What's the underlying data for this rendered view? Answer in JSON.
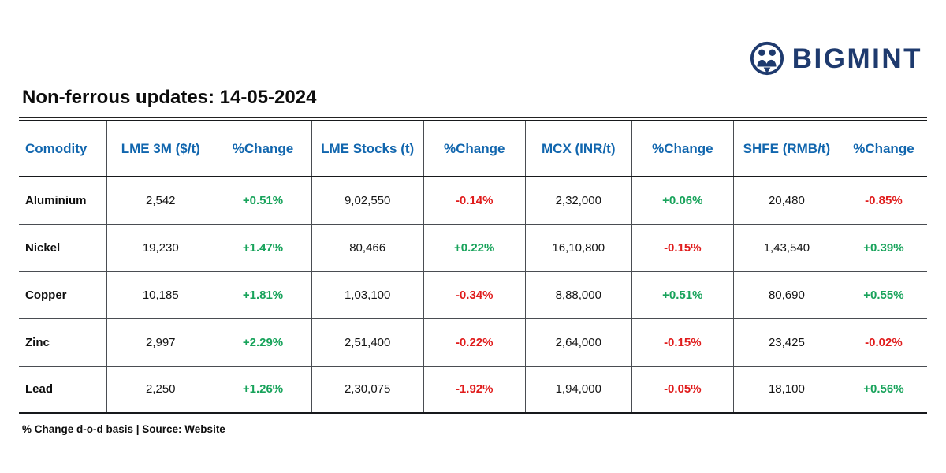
{
  "logo": {
    "text": "BIGMINT"
  },
  "title": "Non-ferrous updates: 14-05-2024",
  "footer": "% Change d-o-d basis | Source: Website",
  "colors": {
    "header_blue": "#1166ae",
    "positive_green": "#18a35b",
    "negative_red": "#e01c1c",
    "logo_navy": "#1e3a6e"
  },
  "chart_data": {
    "type": "table",
    "title": "Non-ferrous updates: 14-05-2024",
    "columns": [
      "Comodity",
      "LME 3M ($/t)",
      "%Change",
      "LME Stocks (t)",
      "%Change",
      "MCX (INR/t)",
      "%Change",
      "SHFE (RMB/t)",
      "%Change"
    ],
    "rows": [
      [
        "Aluminium",
        "2,542",
        "+0.51%",
        "9,02,550",
        "-0.14%",
        "2,32,000",
        "+0.06%",
        "20,480",
        "-0.85%"
      ],
      [
        "Nickel",
        "19,230",
        "+1.47%",
        "80,466",
        "+0.22%",
        "16,10,800",
        "-0.15%",
        "1,43,540",
        "+0.39%"
      ],
      [
        "Copper",
        "10,185",
        "+1.81%",
        "1,03,100",
        "-0.34%",
        "8,88,000",
        "+0.51%",
        "80,690",
        "+0.55%"
      ],
      [
        "Zinc",
        "2,997",
        "+2.29%",
        "2,51,400",
        "-0.22%",
        "2,64,000",
        "-0.15%",
        "23,425",
        "-0.02%"
      ],
      [
        "Lead",
        "2,250",
        "+1.26%",
        "2,30,075",
        "-1.92%",
        "1,94,000",
        "-0.05%",
        "18,100",
        "+0.56%"
      ]
    ]
  }
}
